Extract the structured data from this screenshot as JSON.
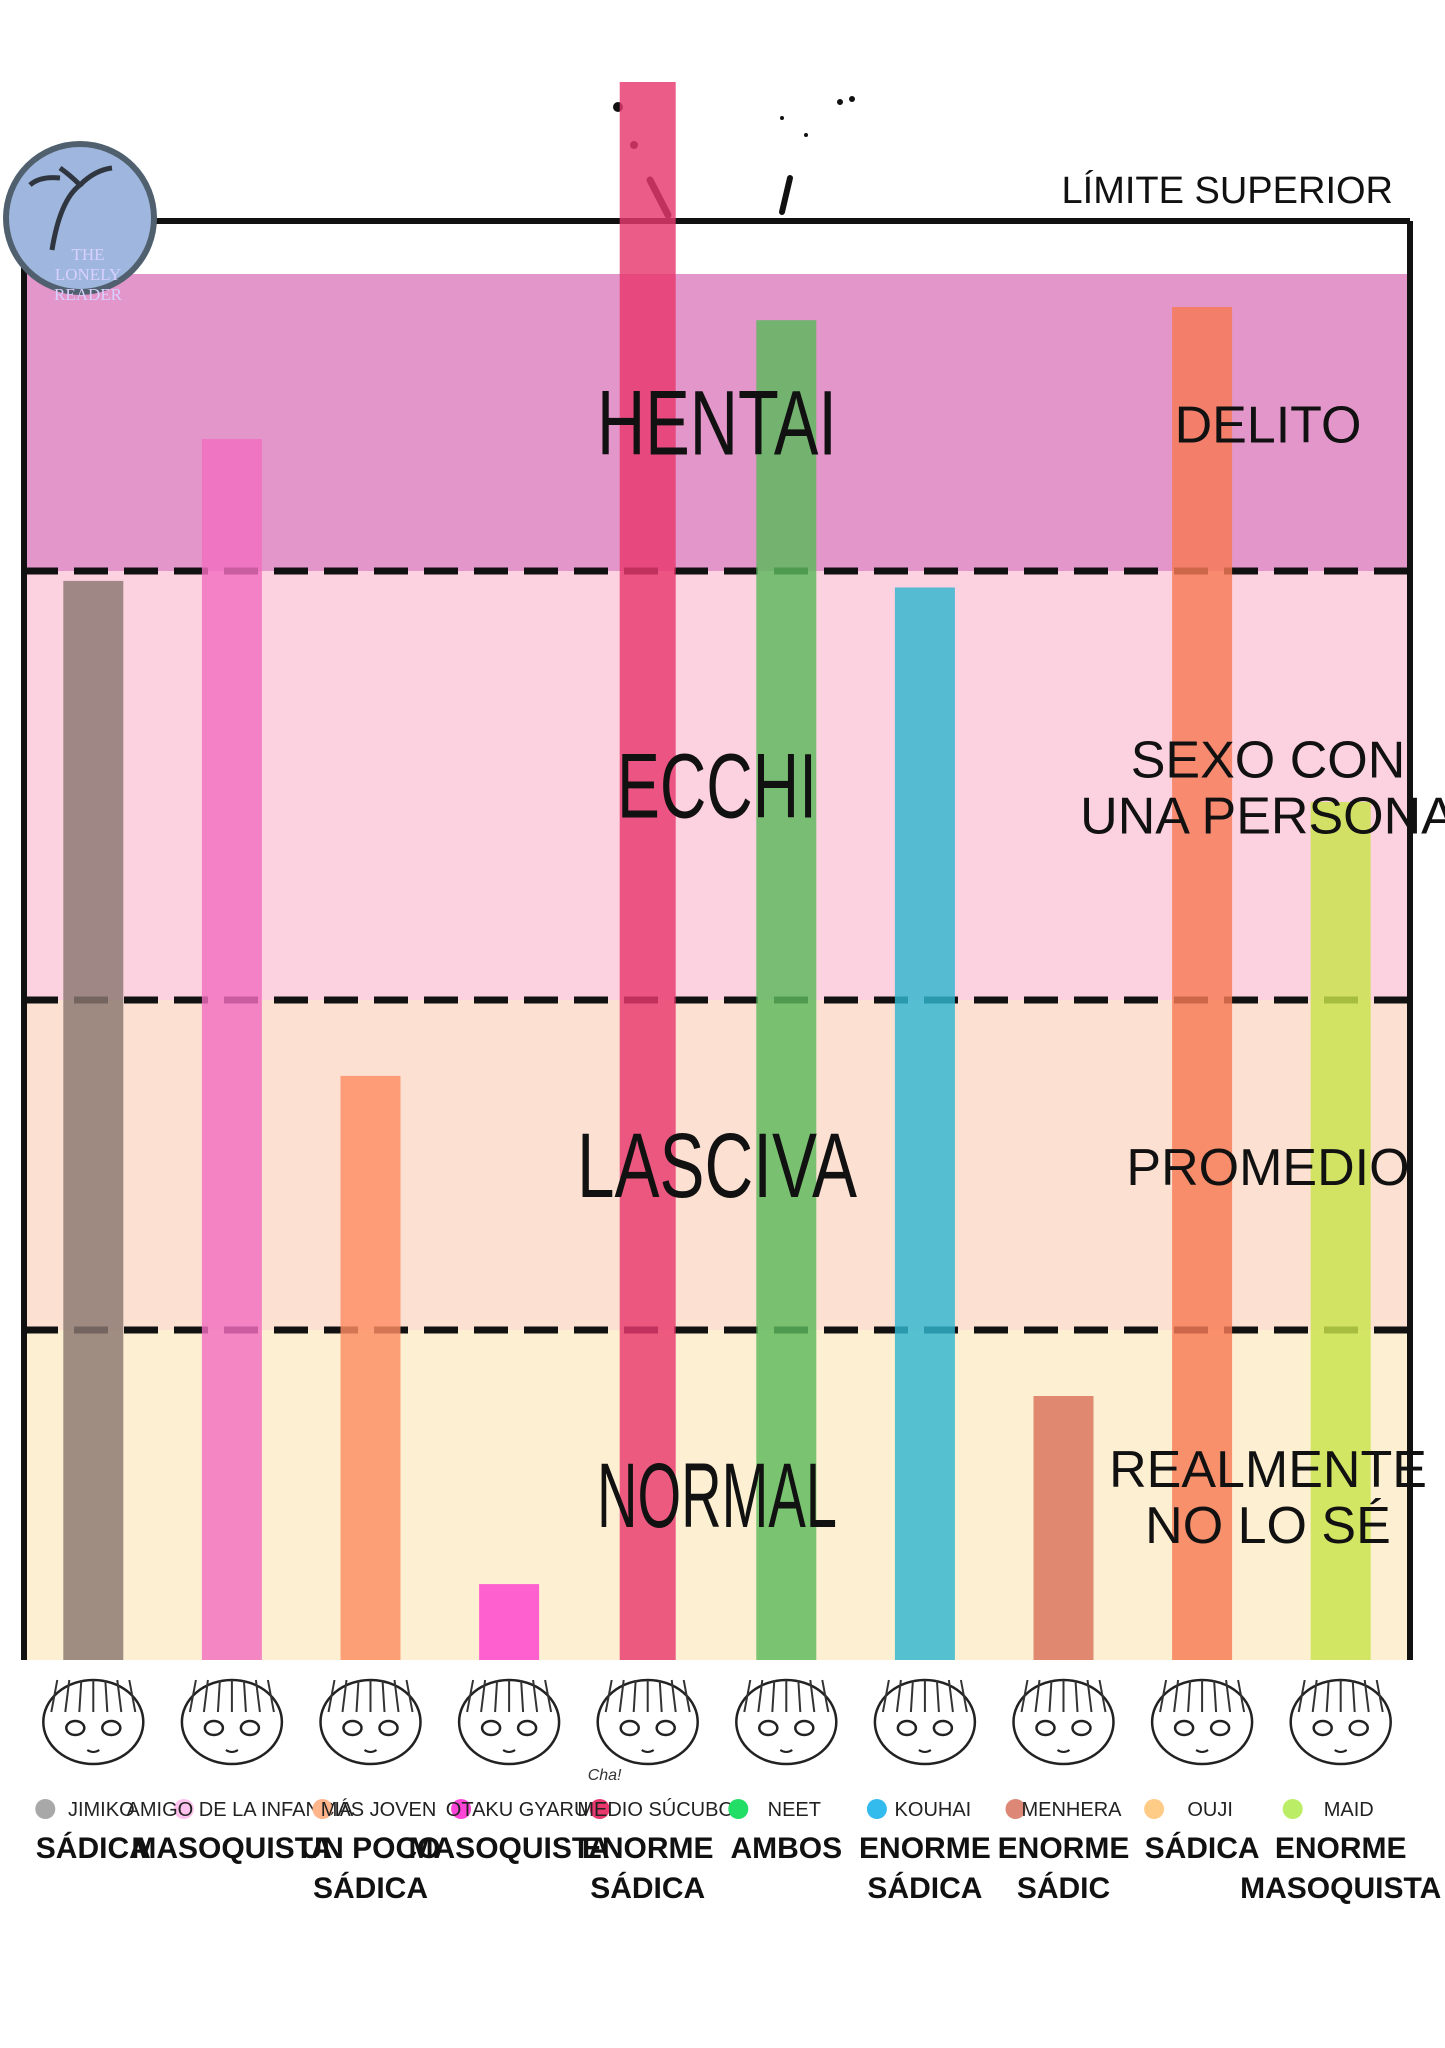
{
  "chart_data": {
    "type": "bar",
    "top_label": "LÍMITE SUPERIOR",
    "ylim": [
      0,
      4.55
    ],
    "zones": [
      {
        "name": "NORMAL",
        "side_label": [
          "REALMENTE",
          "NO LO SÉ"
        ],
        "from": 0,
        "to": 1,
        "color": "#fdf0d2"
      },
      {
        "name": "LASCIVA",
        "side_label": [
          "PROMEDIO"
        ],
        "from": 1,
        "to": 2,
        "color": "#fce0d2"
      },
      {
        "name": "ECCHI",
        "side_label": [
          "SEXO CON",
          "UNA PERSONA"
        ],
        "from": 2,
        "to": 3.3,
        "color": "#fcd2e0"
      },
      {
        "name": "HENTAI",
        "side_label": [
          "DELITO"
        ],
        "from": 3.3,
        "to": 4.2,
        "color": "#e396ca"
      }
    ],
    "categories": [
      {
        "name": "JIMIKO",
        "trait": [
          "SÁDICA"
        ],
        "value": 3.27,
        "color": "#8a7670",
        "dot": "#a8a8a8"
      },
      {
        "name": "AMIGO DE LA INFANCIA",
        "trait": [
          "MASOQUISTA"
        ],
        "value": 3.7,
        "color": "#f26ec0",
        "dot": "#ffc2ee"
      },
      {
        "name": "MÁS JOVEN",
        "trait": [
          "UN POCO",
          "SÁDICA"
        ],
        "value": 1.77,
        "color": "#fc8c62",
        "dot": "#ffb48a"
      },
      {
        "name": "OTAKU GYARU",
        "trait": [
          "MASOQUISTA"
        ],
        "value": 0.23,
        "color": "#ff3fcf",
        "dot": "#ff44d8"
      },
      {
        "name": "MEDIO SÚCUBO",
        "trait": [
          "ENORME",
          "SÁDICA"
        ],
        "value": 4.9,
        "color": "#e8386e",
        "dot": "#e8386e"
      },
      {
        "name": "NEET",
        "trait": [
          "AMBOS"
        ],
        "value": 4.06,
        "color": "#5cb85c",
        "dot": "#22dd66"
      },
      {
        "name": "KOUHAI",
        "trait": [
          "ENORME",
          "SÁDICA"
        ],
        "value": 3.25,
        "color": "#2fb6d0",
        "dot": "#33bbee"
      },
      {
        "name": "MENHERA",
        "trait": [
          "ENORME",
          "SÁDIC"
        ],
        "value": 0.8,
        "color": "#d9705a",
        "dot": "#dd8877"
      },
      {
        "name": "OUJI",
        "trait": [
          "SÁDICA"
        ],
        "value": 4.1,
        "color": "#f77a55",
        "dot": "#ffcc88"
      },
      {
        "name": "MAID",
        "trait": [
          "ENORME",
          "MASOQUISTA"
        ],
        "value": 2.6,
        "color": "#c8e34a",
        "dot": "#bbee66"
      }
    ],
    "annotation": "Cha!",
    "logo": [
      "THE",
      "LONELY",
      "READER"
    ]
  }
}
